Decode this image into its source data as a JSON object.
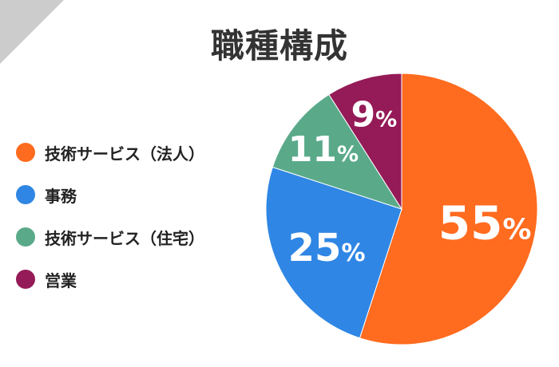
{
  "chart_data": {
    "type": "pie",
    "title": "職種構成",
    "legend_position": "left",
    "slices": [
      {
        "label": "技術サービス（法人）",
        "value": 55,
        "value_label": "55",
        "unit": "%",
        "color": "#ff6b1f"
      },
      {
        "label": "事務",
        "value": 25,
        "value_label": "25",
        "unit": "%",
        "color": "#2f86e4"
      },
      {
        "label": "技術サービス（住宅）",
        "value": 11,
        "value_label": "11",
        "unit": "%",
        "color": "#5aaa8a"
      },
      {
        "label": "営業",
        "value": 9,
        "value_label": "9",
        "unit": "%",
        "color": "#941b57"
      }
    ]
  }
}
